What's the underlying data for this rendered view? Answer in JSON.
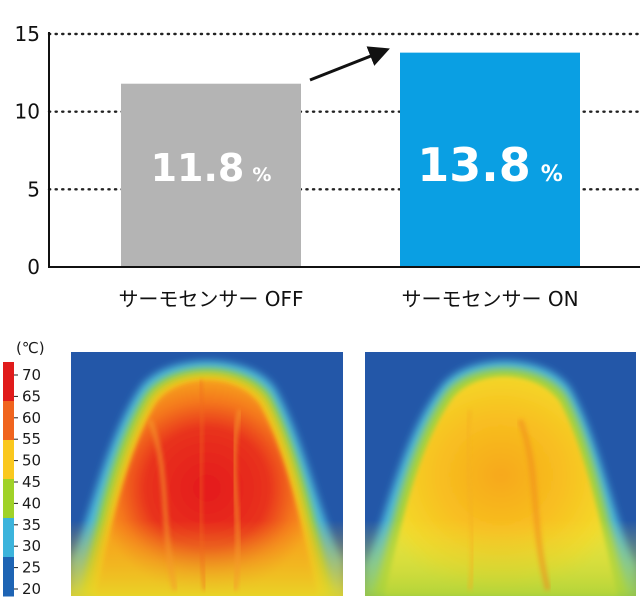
{
  "chart_data": {
    "type": "bar",
    "categories": [
      "サーモセンサー OFF",
      "サーモセンサー ON"
    ],
    "values": [
      11.8,
      13.8
    ],
    "value_labels": [
      {
        "number": "11.8",
        "unit": "%"
      },
      {
        "number": "13.8",
        "unit": "%"
      }
    ],
    "bar_colors": [
      "#b4b4b4",
      "#0a9fe3"
    ],
    "yticks": [
      0,
      5,
      10,
      15
    ],
    "ylim": [
      0,
      15
    ],
    "grid": "dotted horizontal",
    "annotation": "arrow from OFF bar to ON bar"
  },
  "thermal": {
    "unit": "(℃)",
    "scale_ticks": [
      "70",
      "65",
      "60",
      "55",
      "50",
      "45",
      "40",
      "35",
      "30",
      "25",
      "20"
    ],
    "scale_colors": [
      "#e01b1b",
      "#f0641e",
      "#fac81e",
      "#a0d228",
      "#3cb4dc",
      "#1e64b4"
    ],
    "images": [
      {
        "name": "thermo-sensor-off-thermal-image",
        "dominant": "red"
      },
      {
        "name": "thermo-sensor-on-thermal-image",
        "dominant": "yellow"
      }
    ]
  }
}
